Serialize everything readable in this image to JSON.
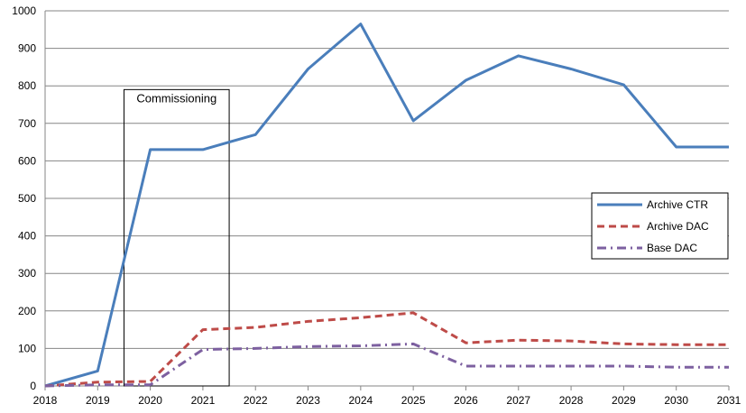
{
  "chart_data": {
    "type": "line",
    "title": "",
    "xlabel": "",
    "ylabel": "",
    "x": [
      2018,
      2019,
      2020,
      2021,
      2022,
      2023,
      2024,
      2025,
      2026,
      2027,
      2028,
      2029,
      2030,
      2031
    ],
    "x_ticks": [
      "2018",
      "2019",
      "2020",
      "2021",
      "2022",
      "2023",
      "2024",
      "2025",
      "2026",
      "2027",
      "2028",
      "2029",
      "2030",
      "2031"
    ],
    "xlim": [
      2018,
      2031
    ],
    "ylim": [
      0,
      1000
    ],
    "y_ticks": [
      "0",
      "100",
      "200",
      "300",
      "400",
      "500",
      "600",
      "700",
      "800",
      "900",
      "1000"
    ],
    "grid": "horizontal",
    "legend_position": "right",
    "series": [
      {
        "name": "Archive CTR",
        "color": "#4a7ebb",
        "style": "solid",
        "values": [
          0,
          40,
          630,
          630,
          670,
          845,
          965,
          707,
          815,
          880,
          845,
          803,
          637,
          637
        ]
      },
      {
        "name": "Archive DAC",
        "color": "#be4b48",
        "style": "dash",
        "values": [
          0,
          10,
          12,
          150,
          156,
          172,
          182,
          195,
          115,
          122,
          120,
          112,
          110,
          110
        ]
      },
      {
        "name": "Base DAC",
        "color": "#7d60a0",
        "style": "dashdot",
        "values": [
          0,
          3,
          3,
          97,
          100,
          105,
          107,
          112,
          53,
          53,
          53,
          53,
          50,
          50
        ]
      }
    ],
    "annotations": [
      {
        "text": "Commissioning",
        "x_range": [
          2019.5,
          2021.5
        ],
        "y_range": [
          0,
          790
        ]
      }
    ]
  }
}
